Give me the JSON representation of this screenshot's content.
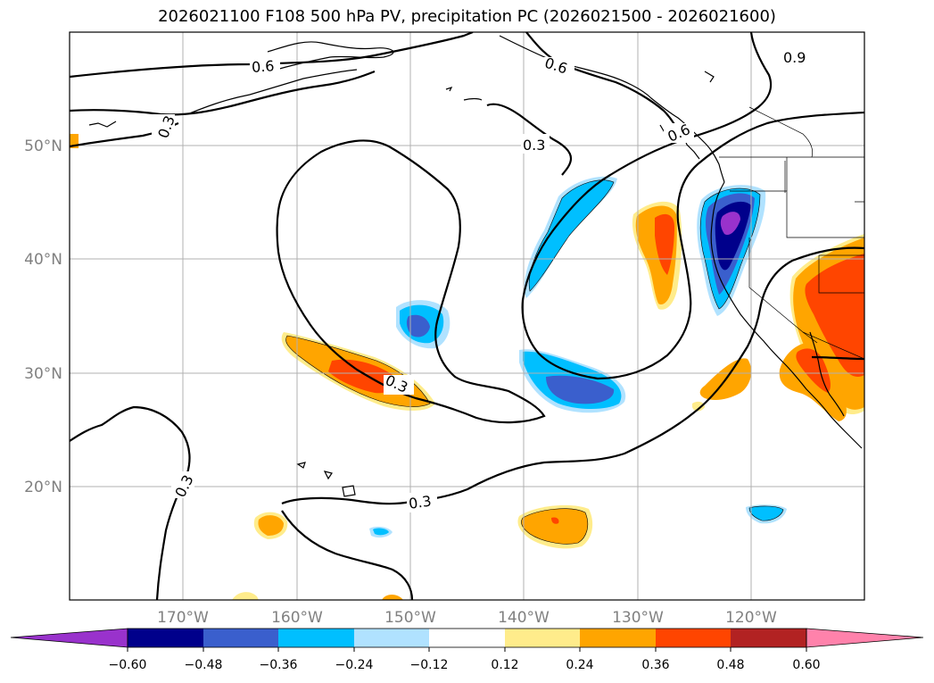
{
  "title": "2026021100 F108 500 hPa PV, precipitation PC (2026021500 - 2026021600)",
  "map": {
    "lat_ticks": [
      "50°N",
      "40°N",
      "30°N",
      "20°N"
    ],
    "lon_ticks": [
      "170°W",
      "160°W",
      "150°W",
      "140°W",
      "130°W",
      "120°W"
    ]
  },
  "contour_labels": [
    "0.6",
    "0.3",
    "0.6",
    "0.6",
    "0.3",
    "0.9",
    "0.3",
    "0.3",
    "0.3"
  ],
  "colorbar": {
    "colors": [
      "#9932cc",
      "#00008b",
      "#3a5fcd",
      "#00bfff",
      "#b0e2ff",
      "#ffffff",
      "#ffec8b",
      "#ffa500",
      "#ff4500",
      "#b22222",
      "#ff82ab"
    ],
    "labels": [
      "−0.60",
      "−0.48",
      "−0.36",
      "−0.24",
      "−0.12",
      "0.12",
      "0.24",
      "0.36",
      "0.48",
      "0.60"
    ]
  }
}
